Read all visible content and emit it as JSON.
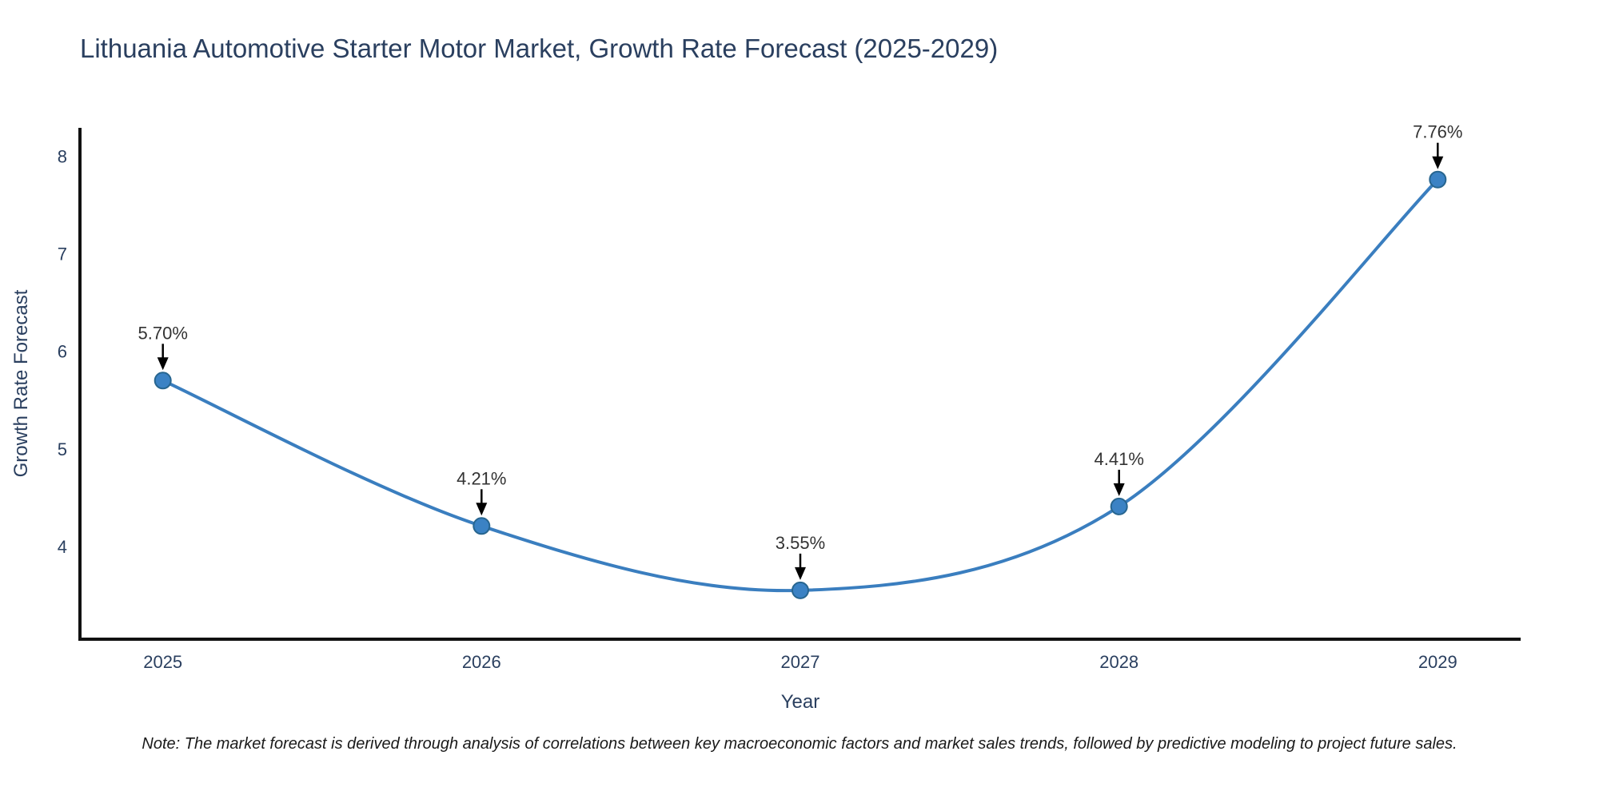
{
  "title": "Lithuania Automotive Starter Motor Market, Growth Rate Forecast (2025-2029)",
  "note": "Note: The market forecast is derived through analysis of correlations between key macroeconomic factors and market sales trends, followed by predictive modeling to project future sales.",
  "chart_data": {
    "type": "line",
    "title": "Lithuania Automotive Starter Motor Market, Growth Rate Forecast (2025-2029)",
    "x": [
      2025,
      2026,
      2027,
      2028,
      2029
    ],
    "values": [
      5.7,
      4.21,
      3.55,
      4.41,
      7.76
    ],
    "point_labels": [
      "5.70%",
      "4.21%",
      "3.55%",
      "4.41%",
      "7.76%"
    ],
    "xlabel": "Year",
    "ylabel": "Growth Rate Forecast",
    "x_tick_labels": [
      "2025",
      "2026",
      "2027",
      "2028",
      "2029"
    ],
    "y_ticks": [
      4,
      5,
      6,
      7,
      8
    ],
    "xlim": [
      2024.74,
      2029.26
    ],
    "ylim": [
      3.05,
      8.29
    ],
    "grid": false,
    "legend": "none",
    "line_color": "#3a7ebf",
    "marker_color": "#3b82c4",
    "marker_edge_color": "#27658f",
    "annotation_arrow_color": "#000000",
    "annotation_text_color": "#333333",
    "axis_spine_color": "#111111",
    "axis_text_color": "#2a3f5f",
    "title_color": "#2a3f5f"
  }
}
